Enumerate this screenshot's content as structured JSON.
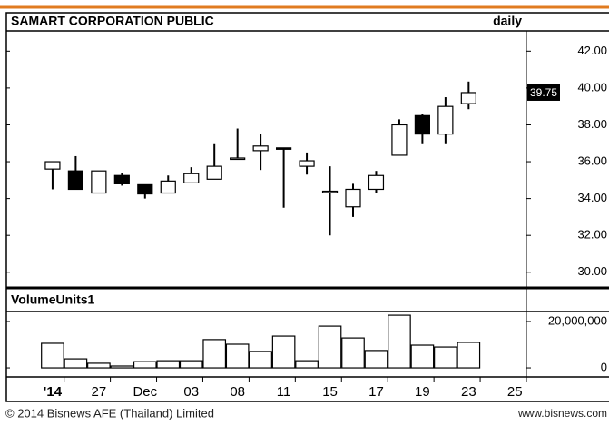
{
  "chart_data": [
    {
      "type": "candlestick",
      "title": "SAMART CORPORATION PUBLIC",
      "subtitle": "daily",
      "open": [
        35.6,
        35.5,
        34.3,
        35.25,
        34.75,
        34.3,
        34.85,
        35.05,
        36.2,
        36.6,
        36.75,
        35.75,
        34.35,
        33.55,
        34.5,
        36.35,
        38.5,
        37.5,
        39.15
      ],
      "high": [
        36.0,
        36.3,
        35.5,
        35.4,
        34.75,
        35.25,
        35.7,
        37.0,
        37.8,
        37.5,
        36.75,
        36.5,
        35.75,
        34.8,
        35.5,
        38.3,
        38.6,
        39.5,
        40.35
      ],
      "low": [
        34.5,
        34.5,
        34.3,
        34.7,
        34.0,
        34.3,
        34.85,
        35.05,
        36.2,
        35.55,
        33.5,
        35.3,
        32.0,
        33.0,
        34.3,
        36.35,
        37.0,
        37.0,
        38.85
      ],
      "close": [
        36.0,
        34.5,
        35.5,
        34.8,
        34.25,
        34.95,
        35.35,
        35.75,
        36.2,
        36.85,
        36.7,
        36.05,
        34.4,
        34.5,
        35.25,
        38.0,
        37.5,
        39.0,
        39.75
      ],
      "up_color": "#ffffff",
      "down_color": "#000000",
      "xlim": [
        -2,
        20.5
      ],
      "ylim": [
        29.2,
        43.1
      ],
      "yticks": [
        {
          "value": 42,
          "label": "42.00"
        },
        {
          "value": 40,
          "label": "40.00"
        },
        {
          "value": 38,
          "label": "38.00"
        },
        {
          "value": 36,
          "label": "36.00"
        },
        {
          "value": 34,
          "label": "34.00"
        },
        {
          "value": 32,
          "label": "32.00"
        },
        {
          "value": 30,
          "label": "30.00"
        }
      ]
    },
    {
      "type": "bar",
      "title": "VolumeUnits1",
      "color": "#ffffff",
      "values": [
        10600000,
        3900000,
        2000000,
        800000,
        2700000,
        3100000,
        3100000,
        12200000,
        10200000,
        7100000,
        13700000,
        3100000,
        18000000,
        12900000,
        7500000,
        22700000,
        9800000,
        9000000,
        11000000
      ],
      "xlim": [
        -2,
        20.5
      ],
      "ylim": [
        -3900000,
        24300000
      ],
      "yticks": [
        {
          "value": 20000000,
          "label": "20,000,000"
        },
        0
      ],
      "xticks": [
        {
          "value": 0,
          "label": "'14"
        },
        {
          "value": 2,
          "label": "27"
        },
        {
          "value": 4,
          "label": "Dec"
        },
        {
          "value": 6,
          "label": "03"
        },
        {
          "value": 8,
          "label": "08"
        },
        {
          "value": 10,
          "label": "11"
        },
        {
          "value": 12,
          "label": "15"
        },
        {
          "value": 14,
          "label": "17"
        },
        {
          "value": 16,
          "label": "19"
        },
        {
          "value": 18,
          "label": "23"
        },
        {
          "value": 20,
          "label": "25"
        }
      ]
    }
  ],
  "footer": {
    "left": "© 2014 Bisnews AFE (Thailand) Limited",
    "right": "www.bisnews.com"
  }
}
